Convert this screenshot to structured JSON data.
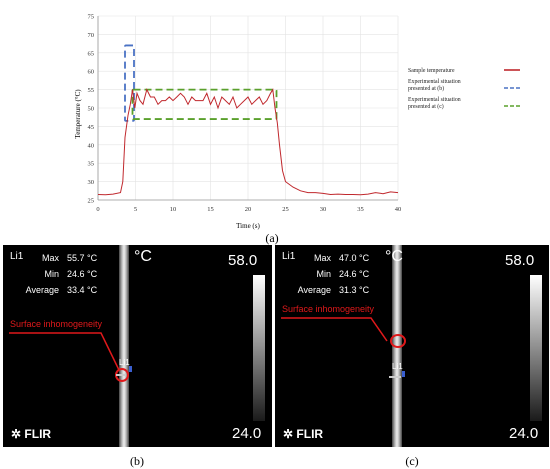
{
  "chart_data": {
    "type": "line",
    "title": "",
    "xlabel": "Time (s)",
    "ylabel": "Temperature (°C)",
    "xlim": [
      0,
      40
    ],
    "ylim": [
      25,
      75
    ],
    "xticks": [
      0,
      5,
      10,
      15,
      20,
      25,
      30,
      35,
      40
    ],
    "yticks": [
      25,
      30,
      35,
      40,
      45,
      50,
      55,
      60,
      65,
      70,
      75
    ],
    "grid": true,
    "legend_position": "right",
    "series": [
      {
        "name": "Sample temperature",
        "color": "#c0282d",
        "x": [
          0,
          1,
          2,
          3,
          3.3,
          3.6,
          4.0,
          4.3,
          4.6,
          4.9,
          5.2,
          5.6,
          6.0,
          6.5,
          7,
          7.5,
          8,
          8.5,
          9,
          9.5,
          10,
          10.5,
          11,
          11.5,
          12,
          12.5,
          13,
          13.5,
          14,
          14.5,
          15,
          15.5,
          16,
          16.5,
          17,
          17.5,
          18,
          18.5,
          19,
          19.5,
          20,
          20.5,
          21,
          21.5,
          22,
          22.5,
          23,
          23.3,
          23.6,
          23.9,
          24.2,
          24.6,
          25,
          26,
          27,
          28,
          29,
          30,
          31,
          32,
          33,
          34,
          35,
          36,
          37,
          38,
          39,
          40
        ],
        "y": [
          26.5,
          26.4,
          26.6,
          27.0,
          30,
          42,
          48,
          51,
          55,
          50,
          54,
          52,
          51,
          55,
          53,
          53,
          51,
          52,
          52,
          53,
          52,
          53,
          54,
          53,
          51,
          53,
          52,
          52,
          52,
          54,
          51,
          53,
          50,
          53,
          52,
          51,
          53,
          50,
          51,
          52,
          53,
          51,
          52,
          53,
          51,
          52,
          54,
          55,
          50,
          46,
          40,
          33,
          30,
          28.5,
          27.5,
          27.0,
          27.0,
          26.8,
          26.5,
          26.6,
          26.5,
          26.5,
          26.4,
          26.6,
          27.0,
          26.7,
          27.2,
          27.0
        ]
      }
    ],
    "boxes": [
      {
        "name": "Experimental situation presented at (b)",
        "color": "#4a72c4",
        "x": [
          3.6,
          4.8
        ],
        "y": [
          46.5,
          67
        ]
      },
      {
        "name": "Experimental situation presented at (c)",
        "color": "#5aa02c",
        "x": [
          4.6,
          23.8
        ],
        "y": [
          47,
          55
        ]
      }
    ]
  },
  "legend": [
    {
      "label": "Sample temperature",
      "color": "#c0282d",
      "style": "solid"
    },
    {
      "label": "Experimental situation presented at (b)",
      "color": "#4a72c4",
      "style": "dashed"
    },
    {
      "label": "Experimental situation presented at (c)",
      "color": "#5aa02c",
      "style": "dashed"
    }
  ],
  "captions": {
    "a": "(a)",
    "b": "(b)",
    "c": "(c)"
  },
  "thermal_b": {
    "line_id": "Li1",
    "max_label": "Max",
    "max_value": "55.7 °C",
    "min_label": "Min",
    "min_value": "24.6 °C",
    "avg_label": "Average",
    "avg_value": "33.4 °C",
    "unit": "°C",
    "scale_max": "58.0",
    "scale_min": "24.0",
    "brand": "FLIR",
    "annotation": "Surface inhomogeneity",
    "marker_label": "Li1"
  },
  "thermal_c": {
    "line_id": "Li1",
    "max_label": "Max",
    "max_value": "47.0 °C",
    "min_label": "Min",
    "min_value": "24.6 °C",
    "avg_label": "Average",
    "avg_value": "31.3 °C",
    "unit": "°C",
    "scale_max": "58.0",
    "scale_min": "24.0",
    "brand": "FLIR",
    "annotation": "Surface inhomogeneity",
    "marker_label": "Li1"
  }
}
